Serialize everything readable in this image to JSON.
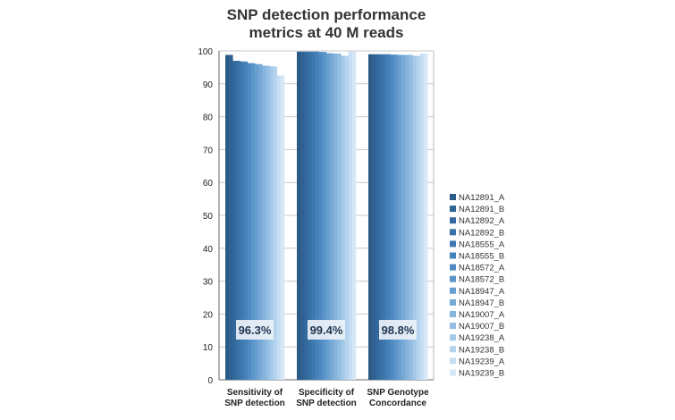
{
  "chart_data": {
    "type": "bar",
    "title_lines": [
      "SNP detection performance",
      "metrics at 40 M reads"
    ],
    "categories": [
      [
        "Sensitivity of",
        "SNP detection"
      ],
      [
        "Specificity of",
        "SNP detection"
      ],
      [
        "SNP Genotype",
        "Concordance"
      ]
    ],
    "ylim": [
      0,
      100
    ],
    "yticks": [
      0,
      10,
      20,
      30,
      40,
      50,
      60,
      70,
      80,
      90,
      100
    ],
    "grid": true,
    "legend_position": "right",
    "summary_labels": [
      "96.3%",
      "99.4%",
      "98.8%"
    ],
    "series": [
      {
        "name": "NA12891_A",
        "color": "#2b5a86",
        "values": [
          98.8,
          99.8,
          99.0
        ]
      },
      {
        "name": "NA12891_B",
        "color": "#2f6192",
        "values": [
          98.8,
          99.8,
          99.0
        ]
      },
      {
        "name": "NA12892_A",
        "color": "#33699c",
        "values": [
          97.0,
          99.8,
          99.0
        ]
      },
      {
        "name": "NA12892_B",
        "color": "#3871a6",
        "values": [
          97.0,
          99.8,
          99.0
        ]
      },
      {
        "name": "NA18555_A",
        "color": "#3d79b0",
        "values": [
          96.8,
          99.8,
          99.0
        ]
      },
      {
        "name": "NA18555_B",
        "color": "#4582ba",
        "values": [
          96.8,
          99.8,
          99.0
        ]
      },
      {
        "name": "NA18572_A",
        "color": "#4f8bc2",
        "values": [
          96.3,
          99.7,
          98.9
        ]
      },
      {
        "name": "NA18572_B",
        "color": "#5b95c9",
        "values": [
          96.3,
          99.7,
          98.9
        ]
      },
      {
        "name": "NA18947_A",
        "color": "#689fd0",
        "values": [
          96.0,
          99.3,
          98.8
        ]
      },
      {
        "name": "NA18947_B",
        "color": "#76a9d6",
        "values": [
          96.0,
          99.3,
          98.8
        ]
      },
      {
        "name": "NA19007_A",
        "color": "#85b3dc",
        "values": [
          95.5,
          99.2,
          98.8
        ]
      },
      {
        "name": "NA19007_B",
        "color": "#94bde2",
        "values": [
          95.5,
          99.2,
          98.8
        ]
      },
      {
        "name": "NA19238_A",
        "color": "#a4c8e8",
        "values": [
          95.3,
          98.5,
          98.5
        ]
      },
      {
        "name": "NA19238_B",
        "color": "#b4d3ee",
        "values": [
          95.3,
          98.5,
          98.5
        ]
      },
      {
        "name": "NA19239_A",
        "color": "#c5def3",
        "values": [
          92.5,
          99.8,
          99.2
        ]
      },
      {
        "name": "NA19239_B",
        "color": "#d6e8f8",
        "values": [
          92.5,
          99.8,
          99.2
        ]
      }
    ]
  }
}
